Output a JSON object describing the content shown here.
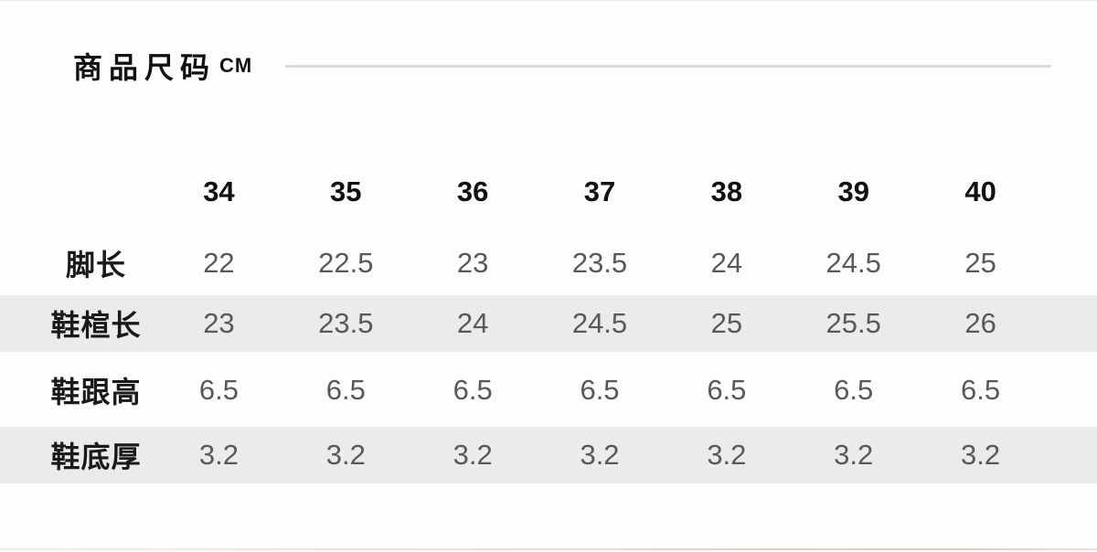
{
  "header": {
    "title": "商品尺码",
    "unit": "CM"
  },
  "size_table": {
    "column_headers": [
      "34",
      "35",
      "36",
      "37",
      "38",
      "39",
      "40"
    ],
    "rows": [
      {
        "label": "脚长",
        "values": [
          "22",
          "22.5",
          "23",
          "23.5",
          "24",
          "24.5",
          "25"
        ]
      },
      {
        "label": "鞋楦长",
        "values": [
          "23",
          "23.5",
          "24",
          "24.5",
          "25",
          "25.5",
          "26"
        ]
      },
      {
        "label": "鞋跟高",
        "values": [
          "6.5",
          "6.5",
          "6.5",
          "6.5",
          "6.5",
          "6.5",
          "6.5"
        ]
      },
      {
        "label": "鞋底厚",
        "values": [
          "3.2",
          "3.2",
          "3.2",
          "3.2",
          "3.2",
          "3.2",
          "3.2"
        ]
      }
    ]
  },
  "colors": {
    "background": "#fdfdfd",
    "stripe": "#ebebeb",
    "divider_line": "#d9d9d9",
    "header_text": "#111111",
    "value_text": "#595959",
    "top_hairline": "#ececec",
    "bottom_hairline": "#ddd3c2"
  }
}
